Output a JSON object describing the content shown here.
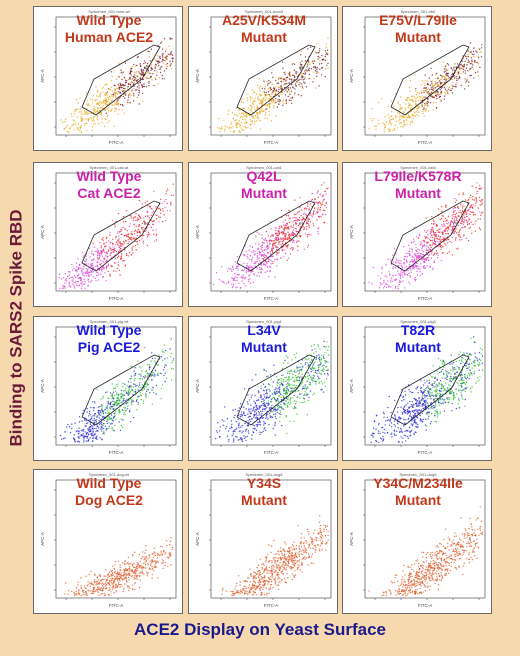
{
  "chart_data": {
    "type": "scatter",
    "ylabel": "Binding to SARS2 Spike RBD",
    "xlabel": "ACE2 Display on Yeast Surface",
    "panels": [
      {
        "title": [
          "Wild Type",
          "Human ACE2"
        ],
        "title_color": "#c0391b",
        "specimen": "Specimen_001-hum-wt",
        "axis_x": "FITC-A",
        "axis_y": "APC-A",
        "dot_colors": [
          "#e8a71a",
          "#7a1a2e"
        ],
        "gate": "P1"
      },
      {
        "title": [
          "A25V/K534M",
          "Mutant"
        ],
        "title_color": "#c0391b",
        "specimen": "Specimen_001-hum3",
        "axis_x": "FITC-A",
        "axis_y": "APC-A",
        "dot_colors": [
          "#e8a71a",
          "#7a1a2e"
        ],
        "gate": "P1"
      },
      {
        "title": [
          "E75V/L79Ile",
          "Mutant"
        ],
        "title_color": "#c0391b",
        "specimen": "Specimen_001-hb6",
        "axis_x": "FITC-A",
        "axis_y": "APC-A",
        "dot_colors": [
          "#e8a71a",
          "#7a1a2e"
        ],
        "gate": "P1"
      },
      {
        "title": [
          "Wild Type",
          "Cat ACE2"
        ],
        "title_color": "#cc22aa",
        "specimen": "Specimen_001-cat-wt",
        "axis_x": "FITC-A",
        "axis_y": "APC-A",
        "dot_colors": [
          "#dd44dd",
          "#e8261a"
        ],
        "gate": "P1"
      },
      {
        "title": [
          "Q42L",
          "Mutant"
        ],
        "title_color": "#cc22aa",
        "specimen": "Specimen_001-cat1",
        "axis_x": "FITC-A",
        "axis_y": "APC-A",
        "dot_colors": [
          "#dd44dd",
          "#e8261a"
        ],
        "gate": "P1"
      },
      {
        "title": [
          "L79Ile/K578R",
          "Mutant"
        ],
        "title_color": "#cc22aa",
        "specimen": "Specimen_001-cat4",
        "axis_x": "FITC-A",
        "axis_y": "APC-A",
        "dot_colors": [
          "#dd44dd",
          "#e8261a"
        ],
        "gate": "P1"
      },
      {
        "title": [
          "Wild Type",
          "Pig ACE2"
        ],
        "title_color": "#1a1adc",
        "specimen": "Specimen_001-pig-wt",
        "axis_x": "FITC-A",
        "axis_y": "APC-A",
        "dot_colors": [
          "#2a2ad8",
          "#2ec02e"
        ],
        "gate": "P1"
      },
      {
        "title": [
          "L34V",
          "Mutant"
        ],
        "title_color": "#1a1adc",
        "specimen": "Specimen_001-pig1",
        "axis_x": "FITC-A",
        "axis_y": "APC-A",
        "dot_colors": [
          "#2a2ad8",
          "#2ec02e"
        ],
        "gate": "P1"
      },
      {
        "title": [
          "T82R",
          "Mutant"
        ],
        "title_color": "#1a1adc",
        "specimen": "Specimen_001-pig3",
        "axis_x": "FITC-A",
        "axis_y": "APC-A",
        "dot_colors": [
          "#2a2ad8",
          "#2ec02e"
        ],
        "gate": "P1"
      },
      {
        "title": [
          "Wild Type",
          "Dog ACE2"
        ],
        "title_color": "#c0391b",
        "specimen": "Specimen_001-dog-wt",
        "axis_x": "FITC-A",
        "axis_y": "APC-A",
        "dot_colors": [
          "#e06030",
          "#e06030"
        ],
        "gate": ""
      },
      {
        "title": [
          "Y34S",
          "Mutant"
        ],
        "title_color": "#c0391b",
        "specimen": "Specimen_001-dog8",
        "axis_x": "FITC-A",
        "axis_y": "APC-A",
        "dot_colors": [
          "#e06030",
          "#e06030"
        ],
        "gate": ""
      },
      {
        "title": [
          "Y34C/M234Ile",
          "Mutant"
        ],
        "title_color": "#c0391b",
        "specimen": "Specimen_001-dog6",
        "axis_x": "FITC-A",
        "axis_y": "APC-A",
        "dot_colors": [
          "#e06030",
          "#e06030"
        ],
        "gate": ""
      }
    ]
  }
}
